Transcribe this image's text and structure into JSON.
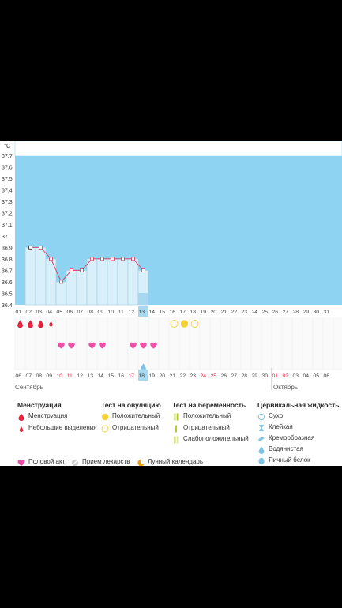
{
  "chart_data": {
    "type": "line",
    "ylabel": "°C",
    "y_ticks": [
      "37.7",
      "37.6",
      "37.5",
      "37.4",
      "37.3",
      "37.2",
      "37.1",
      "37",
      "36.9",
      "36.8",
      "36.7",
      "36.6",
      "36.5",
      "36.4"
    ],
    "ylim": [
      36.4,
      37.7
    ],
    "cycle_days": [
      "01",
      "02",
      "03",
      "04",
      "05",
      "06",
      "07",
      "08",
      "09",
      "10",
      "11",
      "12",
      "13",
      "14",
      "15",
      "16",
      "17",
      "18",
      "19",
      "20",
      "21",
      "22",
      "23",
      "24",
      "25",
      "26",
      "27",
      "28",
      "29",
      "30",
      "31"
    ],
    "current_cycle_day": "13",
    "temperature_series": {
      "x": [
        "02",
        "03",
        "04",
        "05",
        "06",
        "07",
        "08",
        "09",
        "10",
        "11",
        "12",
        "13"
      ],
      "values": [
        36.9,
        36.9,
        36.8,
        36.6,
        36.7,
        36.7,
        36.8,
        36.8,
        36.8,
        36.8,
        36.8,
        36.7
      ]
    },
    "calendar_dates": [
      "06",
      "07",
      "08",
      "09",
      "10",
      "11",
      "12",
      "13",
      "14",
      "15",
      "16",
      "17",
      "18",
      "19",
      "20",
      "21",
      "22",
      "23",
      "24",
      "25",
      "26",
      "27",
      "28",
      "29",
      "30",
      "01",
      "02",
      "03",
      "04",
      "05",
      "06"
    ],
    "highlighted_dates": [
      "10",
      "11",
      "17",
      "24",
      "25",
      "01",
      "02"
    ],
    "current_date": "18",
    "month_left": "Сентябрь",
    "month_right": "Октябрь",
    "menstruation_days": [
      1,
      2,
      3
    ],
    "light_discharge_days": [
      4
    ],
    "ovulation_negative_days": [
      16,
      18
    ],
    "ovulation_positive_days": [
      17
    ],
    "intercourse_days": [
      5,
      6,
      8,
      9,
      12,
      13,
      14
    ],
    "cervical_egg_white_days": [
      13
    ],
    "colors": {
      "chart_bg": "#8fd3f2",
      "past_bar": "#d9f0fb",
      "line": "#d23b5f",
      "today": "#a6d8f0",
      "blood": "#e8213d",
      "heart": "#ef4fa7",
      "ovulation_pos": "#f7d13b",
      "ovulation_neg": "#f3cf4c",
      "preg": "#b4c51a",
      "cervical": "#7dc3e8",
      "red_date": "#e8213d"
    }
  },
  "legend": {
    "menstruation": {
      "title": "Менструация",
      "items": [
        "Менструация",
        "Небольшие выделения"
      ]
    },
    "ovulation": {
      "title": "Тест на овуляцию",
      "items": [
        "Положительный",
        "Отрицательный"
      ]
    },
    "pregnancy": {
      "title": "Тест на беременность",
      "items": [
        "Положительный",
        "Отрицательный",
        "Слабоположительный"
      ]
    },
    "cervical": {
      "title": "Цервикальная жидкость",
      "items": [
        "Сухо",
        "Клейкая",
        "Кремообразная",
        "Водянистая",
        "Яичный белок"
      ]
    },
    "bottom": [
      "Половой акт",
      "Прием лекарств",
      "Лунный календарь"
    ]
  }
}
